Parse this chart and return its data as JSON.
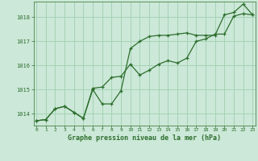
{
  "title": "Graphe pression niveau de la mer (hPa)",
  "background_color": "#cce8d8",
  "line_color": "#2d6e2d",
  "x_hours": [
    0,
    1,
    2,
    3,
    4,
    5,
    6,
    7,
    8,
    9,
    10,
    11,
    12,
    13,
    14,
    15,
    16,
    17,
    18,
    19,
    20,
    21,
    22,
    23
  ],
  "series1": [
    1013.7,
    1013.75,
    1014.2,
    1014.3,
    1014.05,
    1013.8,
    1015.0,
    1014.4,
    1014.4,
    1014.95,
    1016.7,
    1017.0,
    1017.2,
    1017.25,
    1017.25,
    1017.3,
    1017.35,
    1017.25,
    1017.25,
    1017.25,
    1018.1,
    1018.2,
    1018.55,
    1018.1
  ],
  "series2": [
    1013.7,
    1013.75,
    1014.2,
    1014.3,
    1014.05,
    1013.8,
    1015.05,
    1015.1,
    1015.5,
    1015.55,
    1016.05,
    1015.6,
    1015.8,
    1016.05,
    1016.2,
    1016.1,
    1016.3,
    1017.0,
    1017.1,
    1017.3,
    1017.3,
    1018.05,
    1018.15,
    1018.1
  ],
  "ylim": [
    1013.5,
    1018.65
  ],
  "yticks": [
    1014,
    1015,
    1016,
    1017,
    1018
  ],
  "grid_color": "#9ecfb0",
  "marker": "+",
  "xlim": [
    -0.3,
    23.3
  ]
}
